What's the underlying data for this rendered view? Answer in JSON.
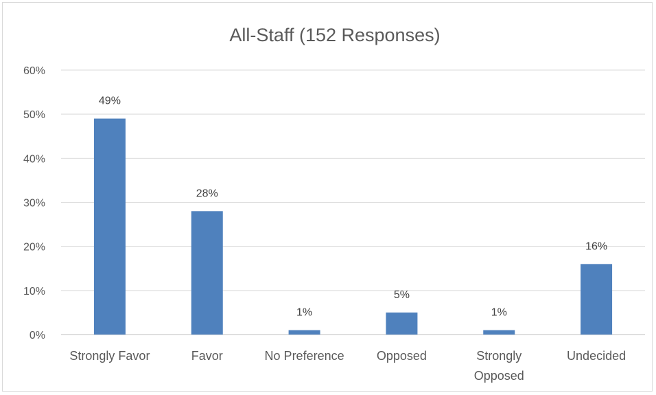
{
  "chart_data": {
    "type": "bar",
    "title": "All-Staff (152 Responses)",
    "categories": [
      "Strongly Favor",
      "Favor",
      "No Preference",
      "Opposed",
      "Strongly Opposed",
      "Undecided"
    ],
    "category_lines": [
      [
        "Strongly Favor"
      ],
      [
        "Favor"
      ],
      [
        "No Preference"
      ],
      [
        "Opposed"
      ],
      [
        "Strongly",
        "Opposed"
      ],
      [
        "Undecided"
      ]
    ],
    "values": [
      0.49,
      0.28,
      0.01,
      0.05,
      0.01,
      0.16
    ],
    "data_labels": [
      "49%",
      "28%",
      "1%",
      "5%",
      "1%",
      "16%"
    ],
    "ylim": [
      0,
      0.6
    ],
    "yticks": [
      0,
      0.1,
      0.2,
      0.3,
      0.4,
      0.5,
      0.6
    ],
    "ytick_labels": [
      "0%",
      "10%",
      "20%",
      "30%",
      "40%",
      "50%",
      "60%"
    ],
    "xlabel": "",
    "ylabel": "",
    "grid": true,
    "legend": "none",
    "bar_color": "#4f81bd"
  }
}
